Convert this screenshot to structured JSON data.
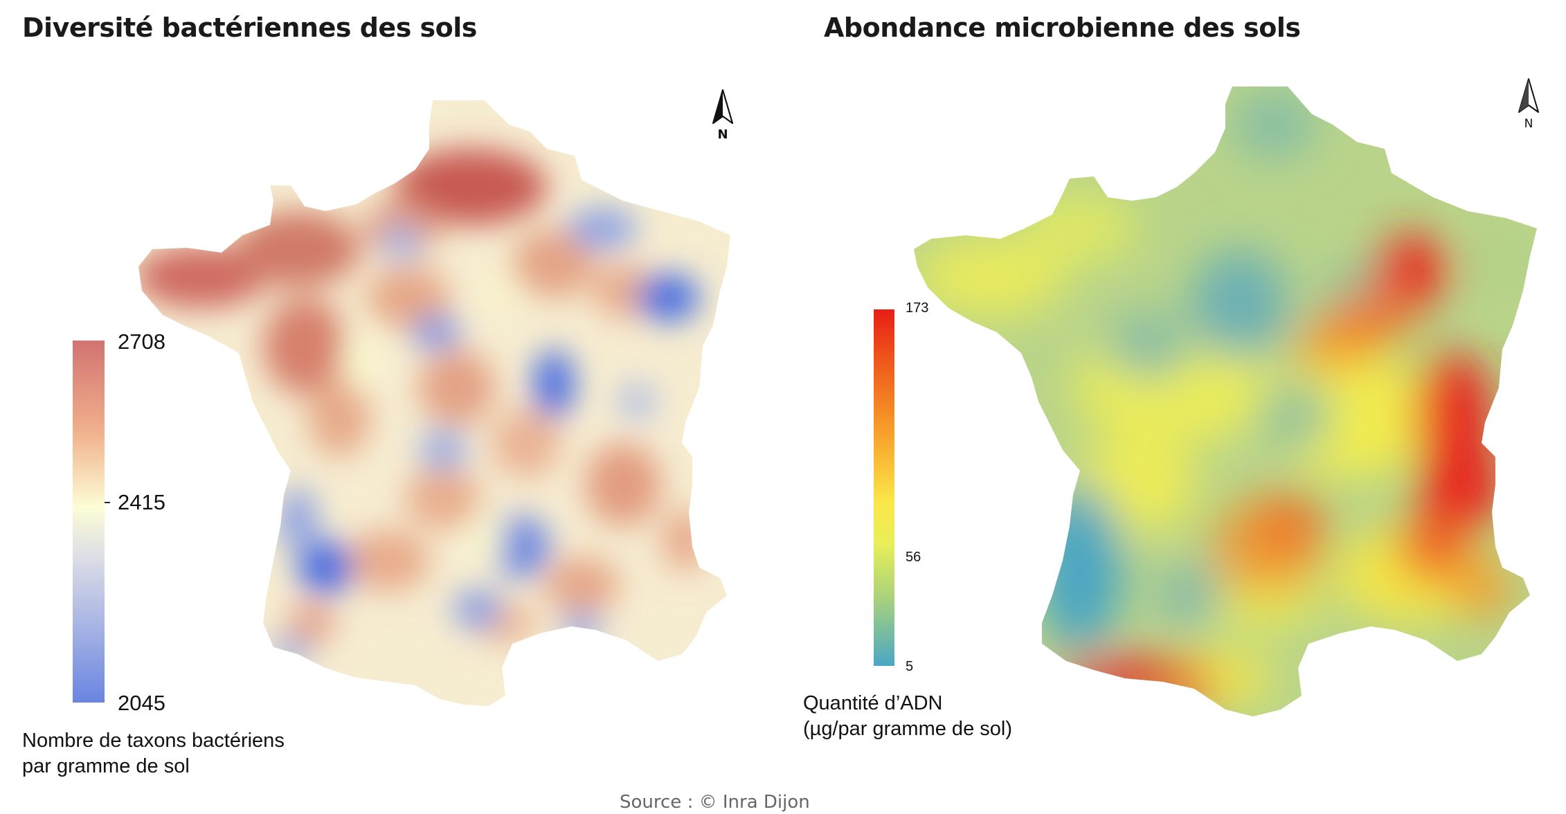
{
  "maps": {
    "left": {
      "title": "Diversité bactériennes des sols",
      "legend_caption_line1": "Nombre de taxons bactériens",
      "legend_caption_line2": "par gramme de sol",
      "scale_labels": {
        "max": "2708",
        "mid": "2415",
        "min": "2045"
      },
      "colors": {
        "high": "#d27372",
        "mid": "#fcfdd6",
        "low": "#6a84e1"
      }
    },
    "right": {
      "title": "Abondance microbienne des sols",
      "legend_caption_line1": "Quantité d’ADN",
      "legend_caption_line2": "(µg/par gramme de sol)",
      "scale_labels": {
        "max": "173",
        "mid": "56",
        "min": "5"
      },
      "colors": {
        "high": "#e81e15",
        "mid": "#fbe749",
        "low": "#4aa7c4"
      }
    }
  },
  "north_label": "N",
  "source": "Source : © Inra Dijon"
}
